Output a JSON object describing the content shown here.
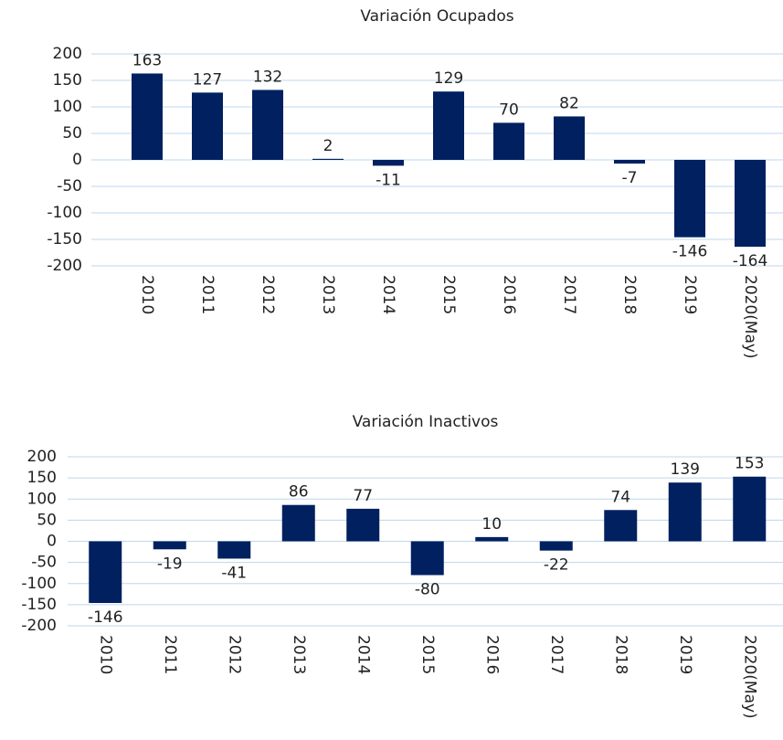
{
  "chart_data": [
    {
      "type": "bar",
      "title": "Variación Ocupados",
      "categories": [
        "2010",
        "2011",
        "2012",
        "2013",
        "2014",
        "2015",
        "2016",
        "2017",
        "2018",
        "2019",
        "2020(May)"
      ],
      "values": [
        163,
        127,
        132,
        2,
        -11,
        129,
        70,
        82,
        -7,
        -146,
        -164
      ],
      "color": "#002060",
      "ylim": [
        -200,
        200
      ],
      "yticks": [
        -200,
        -150,
        -100,
        -50,
        0,
        50,
        100,
        150,
        200
      ],
      "grid": true
    },
    {
      "type": "bar",
      "title": "Variación Inactivos",
      "categories": [
        "2010",
        "2011",
        "2012",
        "2013",
        "2014",
        "2015",
        "2016",
        "2017",
        "2018",
        "2019",
        "2020(May)"
      ],
      "values": [
        -146,
        -19,
        -41,
        86,
        77,
        -80,
        10,
        -22,
        74,
        139,
        153
      ],
      "color": "#002060",
      "ylim": [
        -200,
        200
      ],
      "yticks": [
        -200,
        -150,
        -100,
        -50,
        0,
        50,
        100,
        150,
        200
      ],
      "grid": true
    }
  ]
}
